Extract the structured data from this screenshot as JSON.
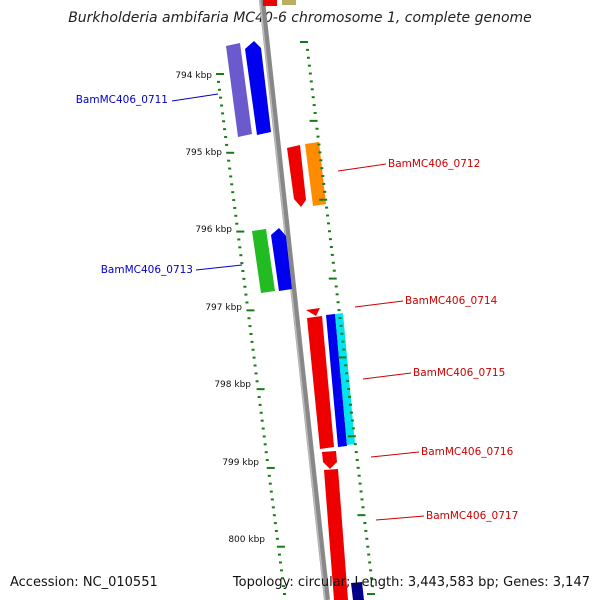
{
  "title": "Burkholderia ambifaria MC40-6 chromosome 1, complete genome",
  "footer": {
    "accession": "Accession: NC_010551",
    "summary": "Topology: circular; Length: 3,443,583 bp; Genes: 3,147"
  },
  "ticks": [
    "794 kbp",
    "795 kbp",
    "796 kbp",
    "797 kbp",
    "798 kbp",
    "799 kbp",
    "800 kbp"
  ],
  "genes": [
    {
      "name": "BamMC406_0711",
      "strand": "forward",
      "color": "#0000cc"
    },
    {
      "name": "BamMC406_0712",
      "strand": "reverse",
      "color": "#cc0000"
    },
    {
      "name": "BamMC406_0713",
      "strand": "forward",
      "color": "#0000cc"
    },
    {
      "name": "BamMC406_0714",
      "strand": "reverse",
      "color": "#cc0000"
    },
    {
      "name": "BamMC406_0715",
      "strand": "reverse",
      "color": "#cc0000"
    },
    {
      "name": "BamMC406_0716",
      "strand": "reverse",
      "color": "#cc0000"
    },
    {
      "name": "BamMC406_0717",
      "strand": "reverse",
      "color": "#cc0000"
    }
  ]
}
